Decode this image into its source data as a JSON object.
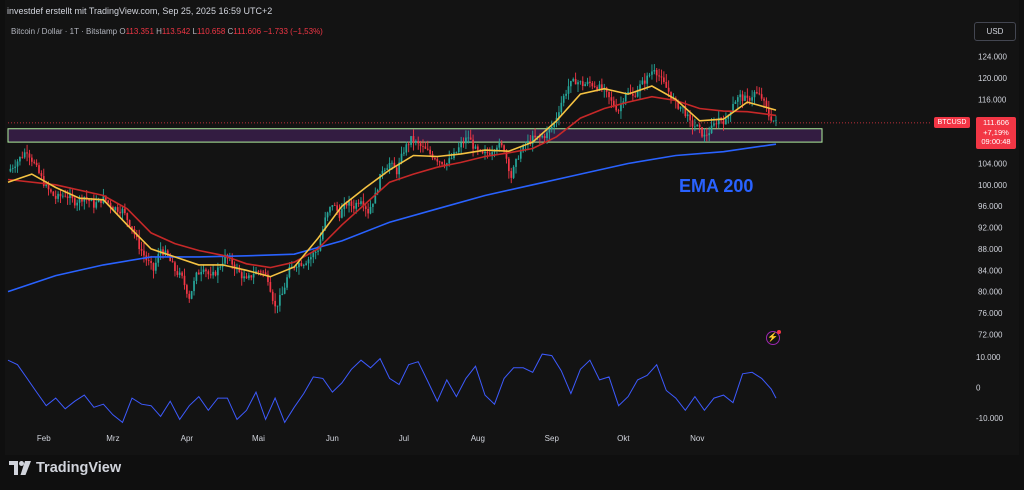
{
  "header": {
    "text": "investdef erstellt mit TradingView.com, Sep 25, 2025 16:59 UTC+2"
  },
  "symbol": {
    "name": "Bitcoin / Dollar · 1T · Bitstamp",
    "o_label": "O",
    "o": "113.351",
    "h_label": "H",
    "h": "113.542",
    "l_label": "L",
    "l": "110.658",
    "c_label": "C",
    "c": "111.606",
    "change": "−1.733 (−1,53%)"
  },
  "currency": "USD",
  "ticker_badge": "BTCUSD",
  "last_price": {
    "price": "111.606",
    "change": "+7,19%",
    "countdown": "09:00:48"
  },
  "annotation": {
    "text": "EMA 200"
  },
  "logo": {
    "text": "TradingView"
  },
  "colors": {
    "up": "#26a69a",
    "down": "#f23645",
    "ema_fast": "#f5c242",
    "ema_mid": "#c62828",
    "ema_200": "#2962ff",
    "oscillator": "#3d5afe",
    "zone_fill": "#3a1e4a",
    "zone_border": "#b2f0a0"
  },
  "chart_data": {
    "type": "line",
    "symbol": "BTCUSD",
    "interval": "1D",
    "ylim": [
      70000,
      126000
    ],
    "y_ticks": [
      "124.000",
      "120.000",
      "116.000",
      "112.000",
      "108.000",
      "104.000",
      "100.000",
      "96.000",
      "92.000",
      "88.000",
      "84.000",
      "80.000",
      "76.000",
      "72.000"
    ],
    "y_tick_values": [
      124000,
      120000,
      116000,
      112000,
      108000,
      104000,
      100000,
      96000,
      92000,
      88000,
      84000,
      80000,
      76000,
      72000
    ],
    "x_ticks": [
      "Feb",
      "Mrz",
      "Apr",
      "Mai",
      "Jun",
      "Jul",
      "Aug",
      "Sep",
      "Okt",
      "Nov"
    ],
    "close_path": [
      [
        0,
        102500
      ],
      [
        4,
        104500
      ],
      [
        8,
        106500
      ],
      [
        12,
        103000
      ],
      [
        16,
        99500
      ],
      [
        20,
        97500
      ],
      [
        24,
        98200
      ],
      [
        28,
        96800
      ],
      [
        32,
        97800
      ],
      [
        36,
        96200
      ],
      [
        40,
        97500
      ],
      [
        44,
        95800
      ],
      [
        48,
        95200
      ],
      [
        52,
        92000
      ],
      [
        55,
        88500
      ],
      [
        58,
        86000
      ],
      [
        61,
        84000
      ],
      [
        64,
        88000
      ],
      [
        67,
        86500
      ],
      [
        70,
        84000
      ],
      [
        73,
        82500
      ],
      [
        76,
        79000
      ],
      [
        79,
        83000
      ],
      [
        82,
        84800
      ],
      [
        85,
        82500
      ],
      [
        88,
        84200
      ],
      [
        91,
        86500
      ],
      [
        94,
        85300
      ],
      [
        97,
        83500
      ],
      [
        100,
        82000
      ],
      [
        103,
        83500
      ],
      [
        106,
        84000
      ],
      [
        109,
        82500
      ],
      [
        112,
        77000
      ],
      [
        115,
        79500
      ],
      [
        118,
        84000
      ],
      [
        121,
        85200
      ],
      [
        124,
        85500
      ],
      [
        127,
        86500
      ],
      [
        130,
        88000
      ],
      [
        133,
        93500
      ],
      [
        136,
        96500
      ],
      [
        139,
        94500
      ],
      [
        142,
        96500
      ],
      [
        145,
        96000
      ],
      [
        148,
        97500
      ],
      [
        151,
        95000
      ],
      [
        154,
        98000
      ],
      [
        157,
        103000
      ],
      [
        160,
        104000
      ],
      [
        163,
        102500
      ],
      [
        166,
        106500
      ],
      [
        169,
        108500
      ],
      [
        172,
        107500
      ],
      [
        175,
        106500
      ],
      [
        178,
        105500
      ],
      [
        181,
        104500
      ],
      [
        184,
        104000
      ],
      [
        187,
        105500
      ],
      [
        190,
        107500
      ],
      [
        193,
        109000
      ],
      [
        196,
        106500
      ],
      [
        199,
        105500
      ],
      [
        202,
        106200
      ],
      [
        205,
        107500
      ],
      [
        208,
        106800
      ],
      [
        211,
        101500
      ],
      [
        214,
        105500
      ],
      [
        217,
        107500
      ],
      [
        220,
        108600
      ],
      [
        223,
        108800
      ],
      [
        226,
        109500
      ],
      [
        229,
        111500
      ],
      [
        232,
        115500
      ],
      [
        235,
        118500
      ],
      [
        238,
        119500
      ],
      [
        241,
        118800
      ],
      [
        244,
        119000
      ],
      [
        247,
        118500
      ],
      [
        250,
        117500
      ],
      [
        253,
        115500
      ],
      [
        256,
        114000
      ],
      [
        259,
        117500
      ],
      [
        262,
        116500
      ],
      [
        265,
        118500
      ],
      [
        268,
        120000
      ],
      [
        271,
        122000
      ],
      [
        274,
        119500
      ],
      [
        277,
        117500
      ],
      [
        280,
        115000
      ],
      [
        283,
        114500
      ],
      [
        286,
        111500
      ],
      [
        289,
        110800
      ],
      [
        292,
        109000
      ],
      [
        295,
        110500
      ],
      [
        298,
        112500
      ],
      [
        301,
        111800
      ],
      [
        304,
        115500
      ],
      [
        307,
        116500
      ],
      [
        310,
        115800
      ],
      [
        313,
        117200
      ],
      [
        316,
        116300
      ],
      [
        319,
        113000
      ],
      [
        322,
        111606
      ]
    ],
    "series": [
      {
        "name": "EMA 200",
        "color": "#2962ff",
        "values": [
          [
            0,
            80000
          ],
          [
            20,
            83000
          ],
          [
            40,
            85000
          ],
          [
            60,
            86500
          ],
          [
            80,
            86500
          ],
          [
            100,
            86700
          ],
          [
            120,
            87000
          ],
          [
            140,
            89500
          ],
          [
            160,
            93000
          ],
          [
            180,
            95500
          ],
          [
            200,
            98000
          ],
          [
            220,
            100000
          ],
          [
            240,
            102000
          ],
          [
            260,
            104000
          ],
          [
            280,
            105500
          ],
          [
            300,
            106200
          ],
          [
            320,
            107500
          ],
          [
            322,
            107600
          ]
        ]
      },
      {
        "name": "EMA mid",
        "color": "#c62828",
        "values": [
          [
            0,
            101000
          ],
          [
            20,
            100000
          ],
          [
            40,
            98000
          ],
          [
            50,
            95500
          ],
          [
            60,
            91000
          ],
          [
            70,
            89000
          ],
          [
            80,
            87700
          ],
          [
            90,
            86800
          ],
          [
            100,
            85200
          ],
          [
            110,
            84500
          ],
          [
            120,
            85500
          ],
          [
            130,
            88000
          ],
          [
            140,
            92500
          ],
          [
            150,
            96500
          ],
          [
            160,
            100500
          ],
          [
            170,
            102000
          ],
          [
            180,
            103300
          ],
          [
            190,
            104200
          ],
          [
            200,
            105300
          ],
          [
            210,
            106000
          ],
          [
            220,
            106800
          ],
          [
            230,
            109000
          ],
          [
            240,
            112500
          ],
          [
            250,
            114300
          ],
          [
            260,
            115500
          ],
          [
            270,
            116500
          ],
          [
            280,
            115800
          ],
          [
            290,
            114300
          ],
          [
            300,
            113800
          ],
          [
            310,
            113700
          ],
          [
            322,
            113000
          ]
        ]
      },
      {
        "name": "EMA fast",
        "color": "#f5c242",
        "values": [
          [
            0,
            100500
          ],
          [
            10,
            102000
          ],
          [
            20,
            99500
          ],
          [
            30,
            97500
          ],
          [
            40,
            97200
          ],
          [
            50,
            92500
          ],
          [
            60,
            88000
          ],
          [
            70,
            86500
          ],
          [
            80,
            85000
          ],
          [
            90,
            85000
          ],
          [
            100,
            84000
          ],
          [
            110,
            82800
          ],
          [
            120,
            84600
          ],
          [
            130,
            90000
          ],
          [
            140,
            96000
          ],
          [
            150,
            99500
          ],
          [
            160,
            102800
          ],
          [
            170,
            105500
          ],
          [
            180,
            105300
          ],
          [
            190,
            105800
          ],
          [
            200,
            106500
          ],
          [
            210,
            106300
          ],
          [
            220,
            108000
          ],
          [
            230,
            112000
          ],
          [
            240,
            117000
          ],
          [
            250,
            118000
          ],
          [
            260,
            117000
          ],
          [
            270,
            118500
          ],
          [
            280,
            116000
          ],
          [
            290,
            112000
          ],
          [
            300,
            112300
          ],
          [
            310,
            115500
          ],
          [
            322,
            114000
          ]
        ]
      }
    ],
    "zone": {
      "label": "",
      "y_low": 108000,
      "y_high": 110500
    },
    "oscillator": {
      "ylim": [
        -13000,
        13000
      ],
      "y_ticks": [
        "10.000",
        "0",
        "-10.000"
      ],
      "y_tick_values": [
        10000,
        0,
        -10000
      ],
      "values": [
        [
          0,
          9000
        ],
        [
          4,
          7500
        ],
        [
          8,
          3000
        ],
        [
          12,
          -1500
        ],
        [
          16,
          -6000
        ],
        [
          20,
          -3500
        ],
        [
          24,
          -7000
        ],
        [
          28,
          -4500
        ],
        [
          32,
          -2500
        ],
        [
          36,
          -6500
        ],
        [
          40,
          -5500
        ],
        [
          44,
          -9000
        ],
        [
          48,
          -11500
        ],
        [
          52,
          -3500
        ],
        [
          56,
          -5500
        ],
        [
          60,
          -6000
        ],
        [
          64,
          -9500
        ],
        [
          68,
          -4500
        ],
        [
          72,
          -10500
        ],
        [
          76,
          -6000
        ],
        [
          80,
          -3000
        ],
        [
          84,
          -7500
        ],
        [
          88,
          -3500
        ],
        [
          92,
          -3500
        ],
        [
          96,
          -10500
        ],
        [
          100,
          -7500
        ],
        [
          104,
          -1500
        ],
        [
          108,
          -10500
        ],
        [
          112,
          -3500
        ],
        [
          116,
          -11500
        ],
        [
          120,
          -6500
        ],
        [
          124,
          -2000
        ],
        [
          128,
          3500
        ],
        [
          132,
          3000
        ],
        [
          136,
          -1500
        ],
        [
          140,
          1500
        ],
        [
          144,
          6000
        ],
        [
          148,
          9000
        ],
        [
          152,
          6500
        ],
        [
          156,
          9500
        ],
        [
          160,
          3000
        ],
        [
          164,
          1000
        ],
        [
          168,
          7500
        ],
        [
          172,
          8500
        ],
        [
          176,
          2000
        ],
        [
          180,
          -4500
        ],
        [
          184,
          2500
        ],
        [
          188,
          -3000
        ],
        [
          192,
          3000
        ],
        [
          196,
          7000
        ],
        [
          200,
          -2500
        ],
        [
          204,
          -5500
        ],
        [
          208,
          3000
        ],
        [
          212,
          6500
        ],
        [
          216,
          6500
        ],
        [
          220,
          5000
        ],
        [
          224,
          11000
        ],
        [
          228,
          10500
        ],
        [
          232,
          5500
        ],
        [
          236,
          -2000
        ],
        [
          240,
          6000
        ],
        [
          244,
          9000
        ],
        [
          248,
          2500
        ],
        [
          252,
          3500
        ],
        [
          256,
          -6000
        ],
        [
          260,
          -3000
        ],
        [
          264,
          2500
        ],
        [
          268,
          4000
        ],
        [
          272,
          7500
        ],
        [
          276,
          -1000
        ],
        [
          280,
          -3500
        ],
        [
          284,
          -7500
        ],
        [
          288,
          -3000
        ],
        [
          292,
          -7500
        ],
        [
          296,
          -3500
        ],
        [
          300,
          -2500
        ],
        [
          304,
          -5000
        ],
        [
          308,
          4500
        ],
        [
          312,
          5000
        ],
        [
          316,
          3000
        ],
        [
          320,
          -500
        ],
        [
          322,
          -3500
        ]
      ]
    },
    "grid": false
  }
}
